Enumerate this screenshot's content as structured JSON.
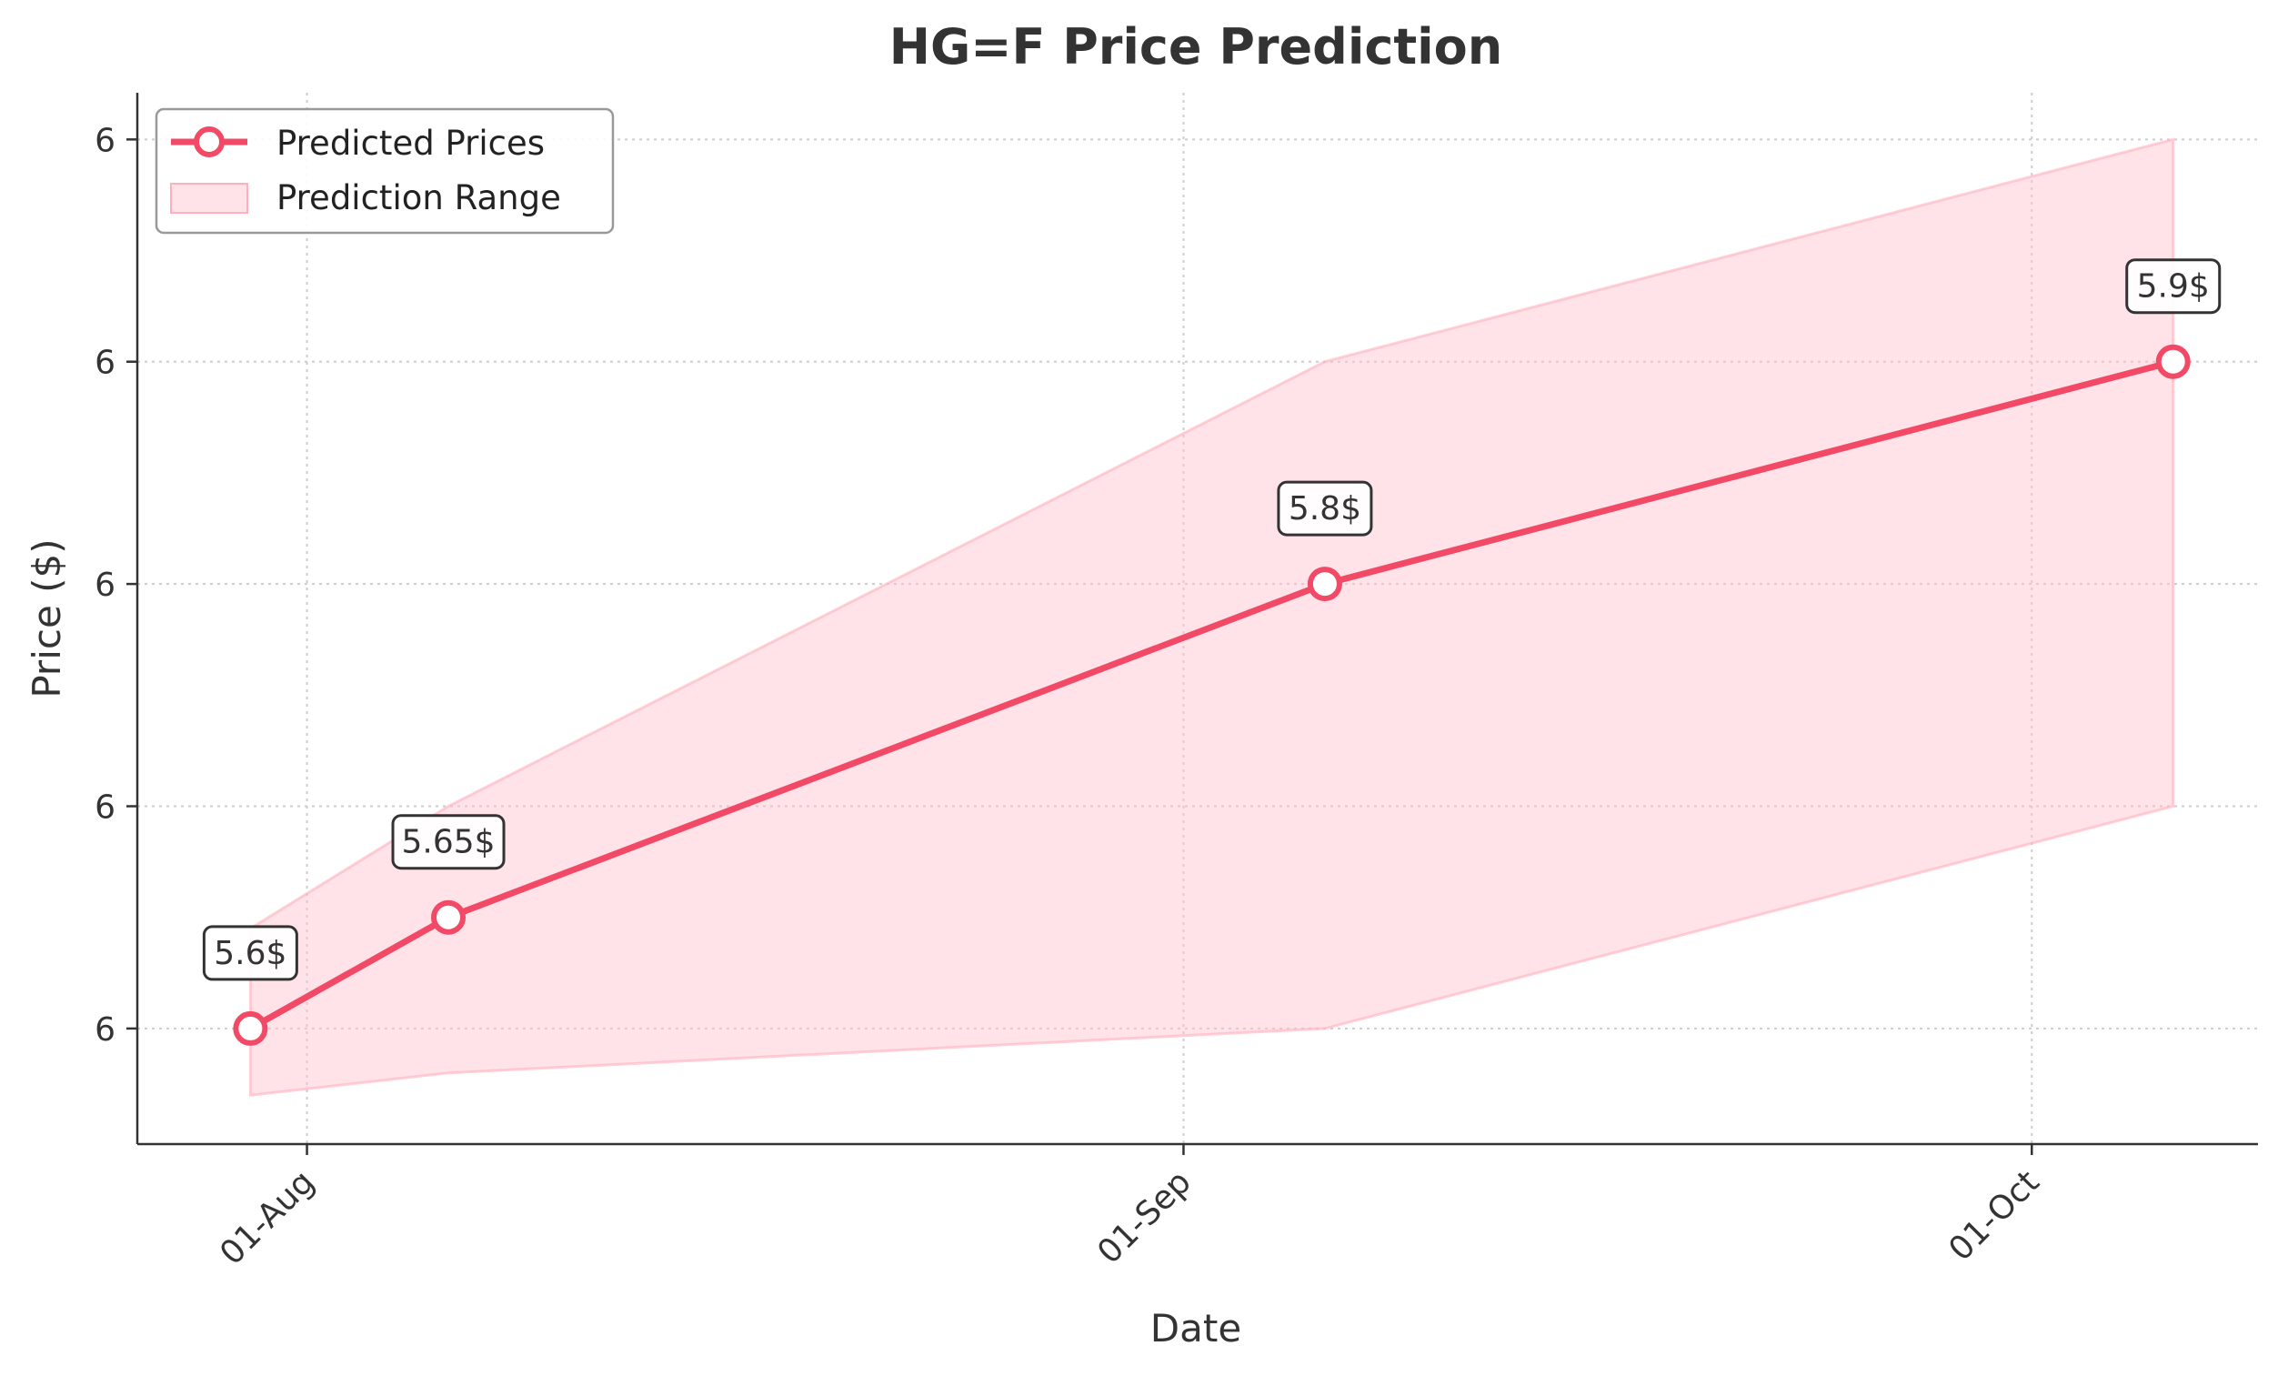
{
  "chart_data": {
    "type": "line",
    "title": "HG=F Price Prediction",
    "xlabel": "Date",
    "ylabel": "Price ($)",
    "x_ticks": [
      {
        "date": "2024-08-01",
        "label": "01-Aug"
      },
      {
        "date": "2024-09-01",
        "label": "01-Sep"
      },
      {
        "date": "2024-10-01",
        "label": "01-Oct"
      }
    ],
    "y_ticks": [
      {
        "value": 5.6,
        "label": "6"
      },
      {
        "value": 5.7,
        "label": "6"
      },
      {
        "value": 5.8,
        "label": "6"
      },
      {
        "value": 5.9,
        "label": "6"
      },
      {
        "value": 6.0,
        "label": "6"
      }
    ],
    "xlim": [
      "2024-07-26",
      "2024-10-09"
    ],
    "ylim": [
      5.548,
      6.021
    ],
    "grid": true,
    "legend_position": "top-left",
    "series": [
      {
        "name": "Predicted Prices",
        "color": "#f24a66",
        "points": [
          {
            "date": "2024-07-30",
            "value": 5.6,
            "label": "5.6$"
          },
          {
            "date": "2024-08-06",
            "value": 5.65,
            "label": "5.65$"
          },
          {
            "date": "2024-09-06",
            "value": 5.8,
            "label": "5.8$"
          },
          {
            "date": "2024-10-06",
            "value": 5.9,
            "label": "5.9$"
          }
        ]
      }
    ],
    "range": {
      "name": "Prediction Range",
      "color": "#ffc0cb",
      "points": [
        {
          "date": "2024-07-30",
          "low": 5.57,
          "high": 5.645
        },
        {
          "date": "2024-08-06",
          "low": 5.58,
          "high": 5.7
        },
        {
          "date": "2024-09-06",
          "low": 5.6,
          "high": 5.9
        },
        {
          "date": "2024-10-06",
          "low": 5.7,
          "high": 6.0
        }
      ]
    }
  }
}
